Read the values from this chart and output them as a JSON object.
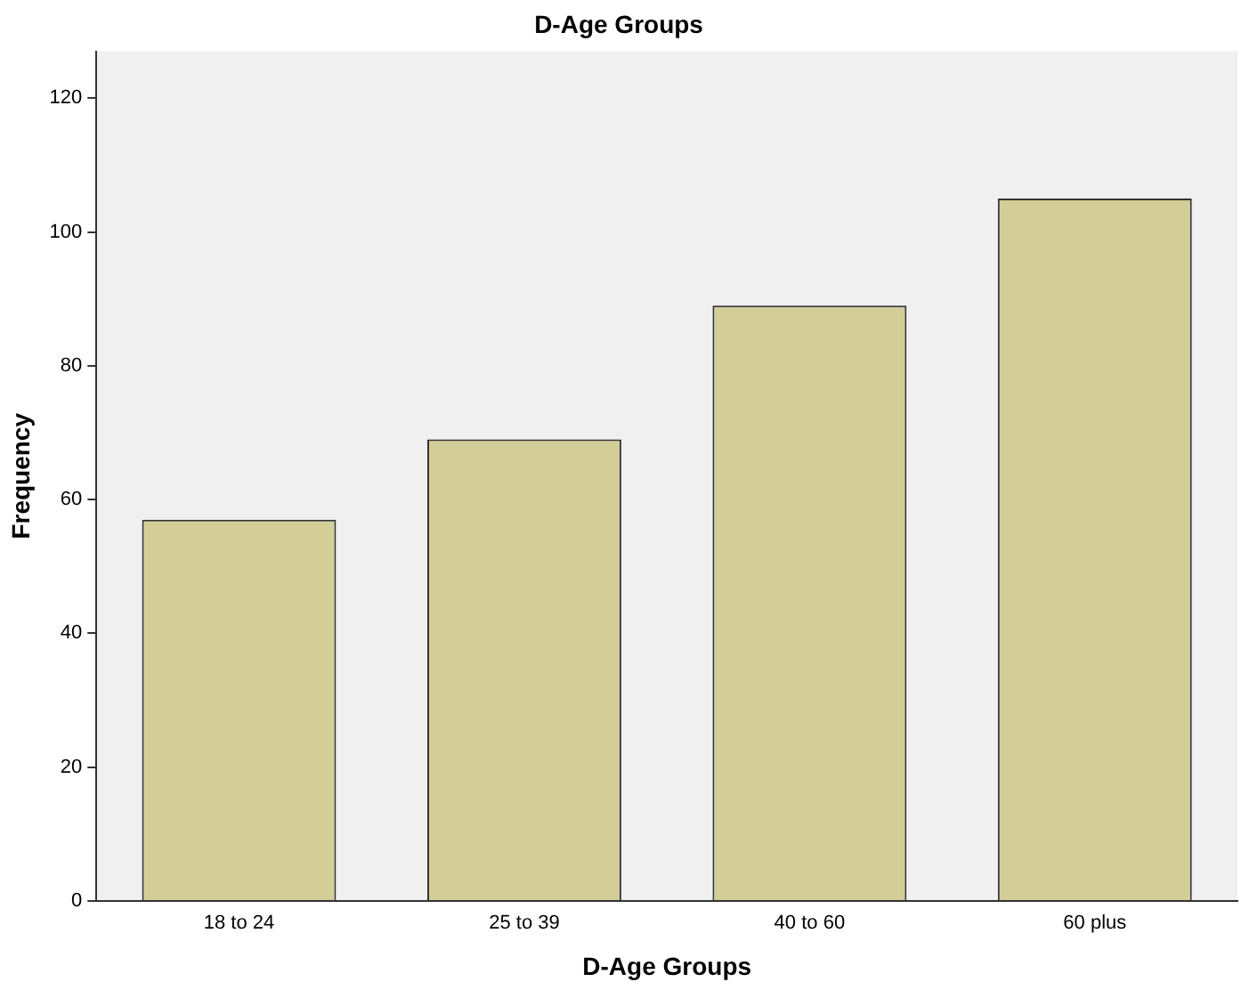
{
  "chart_data": {
    "type": "bar",
    "title": "D-Age Groups",
    "xlabel": "D-Age Groups",
    "ylabel": "Frequency",
    "categories": [
      "18 to 24",
      "25 to 39",
      "40 to 60",
      "60 plus"
    ],
    "values": [
      57,
      69,
      89,
      105
    ],
    "color": "#d3ce97",
    "ylim": [
      0,
      127
    ],
    "yticks": [
      0,
      20,
      40,
      60,
      80,
      100,
      120
    ],
    "grid": false,
    "legend": false
  }
}
